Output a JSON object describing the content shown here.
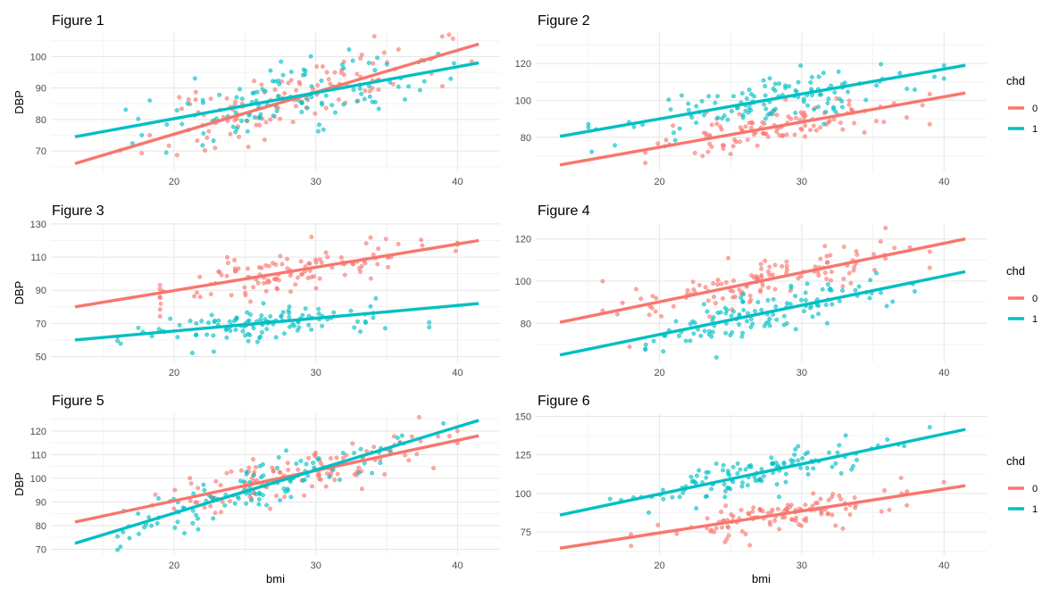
{
  "colors": {
    "group0": "#F8766D",
    "group1": "#00BFC4",
    "grid_major": "#e5e5e5",
    "grid_minor": "#f3f3f3"
  },
  "chart_data": [
    {
      "type": "scatter",
      "title": "Figure 1",
      "xlabel": "",
      "ylabel": "DBP",
      "xlim": [
        11.3,
        43.0
      ],
      "ylim": [
        63.5,
        107.5
      ],
      "xticks": [
        20,
        30,
        40
      ],
      "yticks": [
        70,
        80,
        90,
        100
      ],
      "grid": true,
      "legend": null,
      "series": [
        {
          "group": "0",
          "fit": {
            "x": [
              13,
              41.5
            ],
            "y": [
              66,
              104
            ]
          },
          "points": {
            "n": 120,
            "seed": 11,
            "xmean": 28,
            "xsd": 5,
            "noise": 5,
            "xmin": 15,
            "xmax": 41
          }
        },
        {
          "group": "1",
          "fit": {
            "x": [
              13,
              41.5
            ],
            "y": [
              74.5,
              98
            ]
          },
          "points": {
            "n": 120,
            "seed": 12,
            "xmean": 28,
            "xsd": 5,
            "noise": 5,
            "xmin": 15,
            "xmax": 41
          }
        }
      ]
    },
    {
      "type": "scatter",
      "title": "Figure 2",
      "xlabel": "",
      "ylabel": "",
      "xlim": [
        11.3,
        43.0
      ],
      "ylim": [
        61.5,
        136.5
      ],
      "xticks": [
        20,
        30,
        40
      ],
      "yticks": [
        80,
        100,
        120
      ],
      "grid": true,
      "legend": {
        "title": "chd",
        "entries": [
          "0",
          "1"
        ],
        "position": "right"
      },
      "series": [
        {
          "group": "0",
          "fit": {
            "x": [
              13,
              41.5
            ],
            "y": [
              65,
              104
            ]
          },
          "points": {
            "n": 115,
            "seed": 21,
            "xmean": 28,
            "xsd": 4.5,
            "noise": 5.5,
            "xmin": 19,
            "xmax": 39
          }
        },
        {
          "group": "1",
          "fit": {
            "x": [
              13,
              41.5
            ],
            "y": [
              80.5,
              119
            ]
          },
          "points": {
            "n": 125,
            "seed": 22,
            "xmean": 27,
            "xsd": 5.5,
            "noise": 5.5,
            "xmin": 15,
            "xmax": 40
          }
        }
      ]
    },
    {
      "type": "scatter",
      "title": "Figure 3",
      "xlabel": "",
      "ylabel": "DBP",
      "xlim": [
        11.3,
        43.0
      ],
      "ylim": [
        46.5,
        130.5
      ],
      "xticks": [
        20,
        30,
        40
      ],
      "yticks": [
        50,
        70,
        90,
        110,
        130
      ],
      "grid": true,
      "legend": null,
      "series": [
        {
          "group": "0",
          "fit": {
            "x": [
              13,
              41.5
            ],
            "y": [
              80,
              120
            ]
          },
          "points": {
            "n": 120,
            "seed": 31,
            "xmean": 28,
            "xsd": 5,
            "noise": 6,
            "xmin": 19,
            "xmax": 40
          }
        },
        {
          "group": "1",
          "fit": {
            "x": [
              13,
              41.5
            ],
            "y": [
              60,
              82
            ]
          },
          "points": {
            "n": 120,
            "seed": 32,
            "xmean": 26,
            "xsd": 4.5,
            "noise": 5,
            "xmin": 16,
            "xmax": 38
          }
        }
      ]
    },
    {
      "type": "scatter",
      "title": "Figure 4",
      "xlabel": "",
      "ylabel": "",
      "xlim": [
        11.3,
        43.0
      ],
      "ylim": [
        61.5,
        127.5
      ],
      "xticks": [
        20,
        30,
        40
      ],
      "yticks": [
        80,
        100,
        120
      ],
      "grid": true,
      "legend": {
        "title": "chd",
        "entries": [
          "0",
          "1"
        ],
        "position": "right"
      },
      "series": [
        {
          "group": "0",
          "fit": {
            "x": [
              13,
              41.5
            ],
            "y": [
              80.5,
              120
            ]
          },
          "points": {
            "n": 120,
            "seed": 41,
            "xmean": 28,
            "xsd": 5,
            "noise": 5.5,
            "xmin": 16,
            "xmax": 39
          }
        },
        {
          "group": "1",
          "fit": {
            "x": [
              13,
              41.5
            ],
            "y": [
              65,
              104.5
            ]
          },
          "points": {
            "n": 120,
            "seed": 42,
            "xmean": 27,
            "xsd": 4.5,
            "noise": 5,
            "xmin": 19,
            "xmax": 38
          }
        }
      ]
    },
    {
      "type": "scatter",
      "title": "Figure 5",
      "xlabel": "bmi",
      "ylabel": "DBP",
      "xlim": [
        11.3,
        43.0
      ],
      "ylim": [
        67.5,
        127.5
      ],
      "xticks": [
        20,
        30,
        40
      ],
      "yticks": [
        70,
        80,
        90,
        100,
        110,
        120
      ],
      "grid": true,
      "legend": null,
      "series": [
        {
          "group": "0",
          "fit": {
            "x": [
              13,
              41.5
            ],
            "y": [
              81.5,
              118
            ]
          },
          "points": {
            "n": 120,
            "seed": 51,
            "xmean": 28,
            "xsd": 5,
            "noise": 5,
            "xmin": 15,
            "xmax": 40
          }
        },
        {
          "group": "1",
          "fit": {
            "x": [
              13,
              41.5
            ],
            "y": [
              72.5,
              124.5
            ]
          },
          "points": {
            "n": 120,
            "seed": 52,
            "xmean": 27,
            "xsd": 5,
            "noise": 5,
            "xmin": 16,
            "xmax": 39
          }
        }
      ]
    },
    {
      "type": "scatter",
      "title": "Figure 6",
      "xlabel": "bmi",
      "ylabel": "",
      "xlim": [
        11.3,
        43.0
      ],
      "ylim": [
        60.0,
        152.0
      ],
      "xticks": [
        20,
        30,
        40
      ],
      "yticks": [
        75,
        100,
        125,
        150
      ],
      "grid": true,
      "legend": {
        "title": "chd",
        "entries": [
          "0",
          "1"
        ],
        "position": "right"
      },
      "series": [
        {
          "group": "0",
          "fit": {
            "x": [
              13,
              41.5
            ],
            "y": [
              64.5,
              105
            ]
          },
          "points": {
            "n": 120,
            "seed": 61,
            "xmean": 28,
            "xsd": 5,
            "noise": 5,
            "xmin": 18,
            "xmax": 40
          }
        },
        {
          "group": "1",
          "fit": {
            "x": [
              13,
              41.5
            ],
            "y": [
              86,
              141.5
            ]
          },
          "points": {
            "n": 120,
            "seed": 62,
            "xmean": 27,
            "xsd": 5,
            "noise": 6,
            "xmin": 12,
            "xmax": 39
          }
        }
      ]
    }
  ]
}
